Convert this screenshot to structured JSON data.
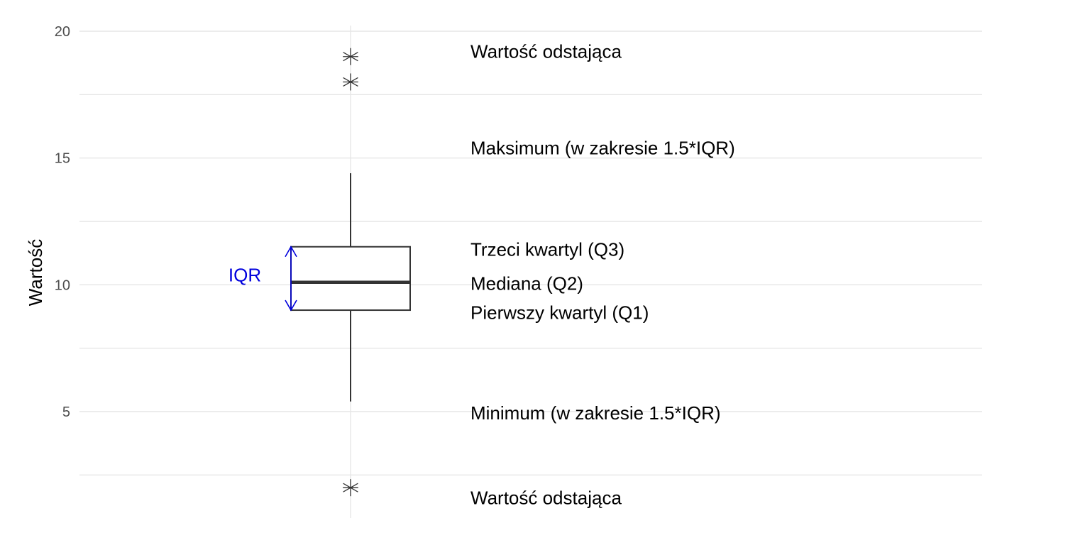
{
  "chart_data": {
    "type": "box",
    "ylabel": "Wartość",
    "ylim": [
      0.6,
      20.1
    ],
    "yticks": [
      5,
      10,
      15,
      20
    ],
    "grid": true,
    "box": {
      "min": 5.4,
      "q1": 9.0,
      "median": 10.1,
      "q3": 11.5,
      "max": 14.4,
      "outliers": [
        19.0,
        18.0,
        2.0
      ]
    },
    "annotations": [
      {
        "key": "outlier_top",
        "text": "Wartość odstająca",
        "y": 19.2
      },
      {
        "key": "max",
        "text": "Maksimum (w zakresie 1.5*IQR)",
        "y": 15.4
      },
      {
        "key": "q3",
        "text": "Trzeci kwartyl (Q3)",
        "y": 11.4
      },
      {
        "key": "median",
        "text": "Mediana (Q2)",
        "y": 10.05
      },
      {
        "key": "q1",
        "text": "Pierwszy kwartyl (Q1)",
        "y": 8.9
      },
      {
        "key": "min",
        "text": "Minimum (w zakresie 1.5*IQR)",
        "y": 4.95
      },
      {
        "key": "outlier_bottom",
        "text": "Wartość odstająca",
        "y": 1.6
      }
    ],
    "iqr_label": "IQR",
    "colors": {
      "box": "#333333",
      "median": "#333333",
      "iqr_arrow": "#0000dd",
      "grid": "#e6e6e6"
    }
  }
}
